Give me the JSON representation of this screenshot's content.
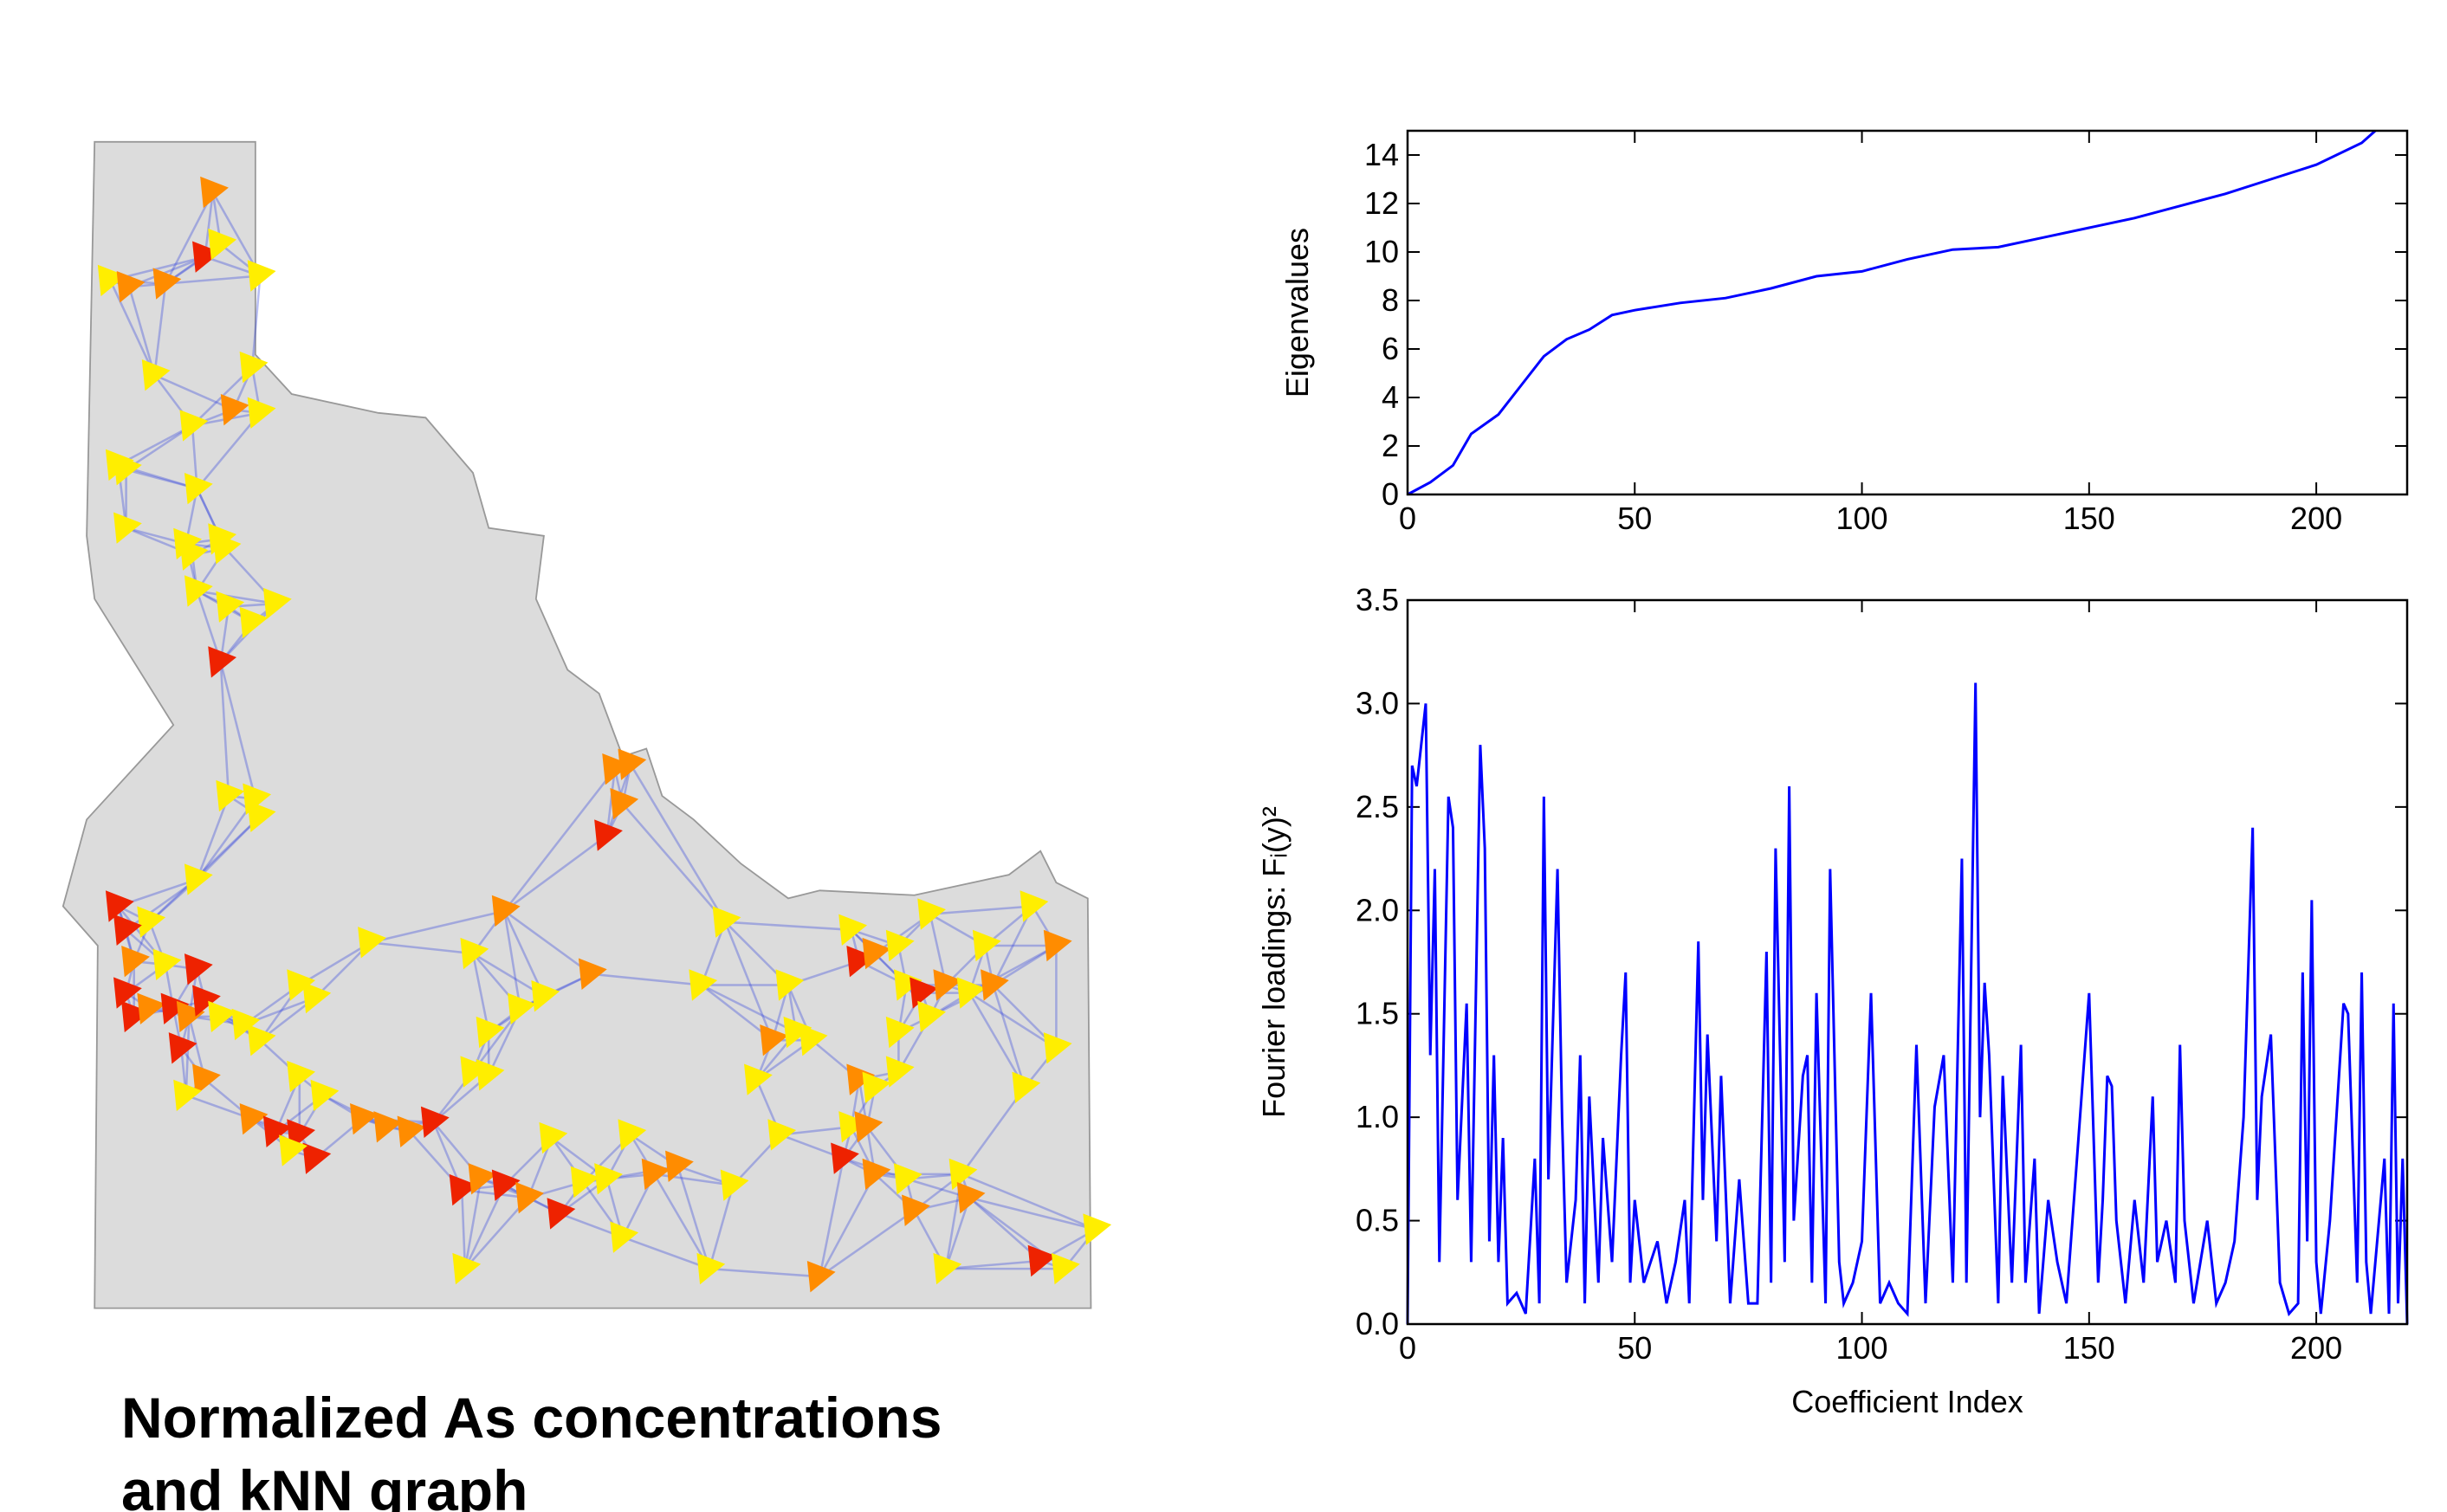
{
  "caption": "Normalized As concentrations and kNN graph",
  "chart_data": [
    {
      "type": "line",
      "ylabel": "Eigenvalues",
      "color": "#0000ff",
      "xlim": [
        0,
        220
      ],
      "xticks": [
        0,
        50,
        100,
        150,
        200
      ],
      "ylim": [
        0,
        15
      ],
      "yticks": [
        0,
        2,
        4,
        6,
        8,
        10,
        12,
        14
      ],
      "x": [
        0,
        5,
        10,
        14,
        20,
        25,
        30,
        35,
        40,
        45,
        50,
        60,
        70,
        80,
        90,
        100,
        110,
        120,
        130,
        140,
        150,
        160,
        170,
        180,
        190,
        200,
        210,
        213
      ],
      "values": [
        0,
        0.5,
        1.2,
        2.5,
        3.3,
        4.5,
        5.7,
        6.4,
        6.8,
        7.4,
        7.6,
        7.9,
        8.1,
        8.5,
        9.0,
        9.2,
        9.7,
        10.1,
        10.2,
        10.6,
        11.0,
        11.4,
        11.9,
        12.4,
        13.0,
        13.6,
        14.5,
        15
      ]
    },
    {
      "type": "line",
      "ylabel": "Fourier loadings: Fᵢ(y)²",
      "xlabel": "Coefficient Index",
      "color": "#0000ff",
      "xlim": [
        0,
        220
      ],
      "xticks": [
        0,
        50,
        100,
        150,
        200
      ],
      "ylim": [
        0,
        3.5
      ],
      "yticks": [
        {
          "value": 0,
          "label": "0.0"
        },
        {
          "value": 0.5,
          "label": "0.5"
        },
        {
          "value": 1,
          "label": "1.0"
        },
        {
          "value": 1.5,
          "label": "1.5"
        },
        {
          "value": 2,
          "label": "2.0"
        },
        {
          "value": 2.5,
          "label": "2.5"
        },
        {
          "value": 3,
          "label": "3.0"
        },
        {
          "value": 3.5,
          "label": "3.5"
        }
      ],
      "x": [
        0,
        1,
        2,
        4,
        5,
        6,
        7,
        9,
        10,
        11,
        13,
        14,
        16,
        17,
        18,
        19,
        20,
        21,
        22,
        24,
        26,
        28,
        29,
        30,
        31,
        33,
        34,
        35,
        37,
        38,
        39,
        40,
        42,
        43,
        45,
        47,
        48,
        49,
        50,
        52,
        55,
        57,
        59,
        61,
        62,
        64,
        65,
        66,
        68,
        69,
        71,
        73,
        75,
        77,
        79,
        80,
        81,
        83,
        84,
        85,
        87,
        88,
        89,
        90,
        92,
        93,
        95,
        96,
        98,
        100,
        102,
        104,
        106,
        108,
        110,
        112,
        114,
        116,
        118,
        120,
        122,
        123,
        125,
        126,
        127,
        128,
        130,
        131,
        133,
        135,
        136,
        138,
        139,
        141,
        143,
        145,
        150,
        152,
        153,
        154,
        155,
        156,
        158,
        160,
        162,
        164,
        165,
        167,
        169,
        170,
        171,
        173,
        176,
        178,
        180,
        182,
        184,
        186,
        187,
        188,
        190,
        192,
        194,
        196,
        197,
        198,
        199,
        200,
        201,
        203,
        205,
        206,
        207,
        209,
        210,
        211,
        212,
        213,
        215,
        216,
        217,
        218,
        219,
        220
      ],
      "values": [
        0,
        2.7,
        2.6,
        3.0,
        1.3,
        2.2,
        0.3,
        2.55,
        2.4,
        0.6,
        1.55,
        0.3,
        2.8,
        2.3,
        0.4,
        1.3,
        0.3,
        0.9,
        0.1,
        0.15,
        0.05,
        0.8,
        0.1,
        2.55,
        0.7,
        2.2,
        1.0,
        0.2,
        0.6,
        1.3,
        0.1,
        1.1,
        0.2,
        0.9,
        0.3,
        1.3,
        1.7,
        0.2,
        0.6,
        0.2,
        0.4,
        0.1,
        0.3,
        0.6,
        0.1,
        1.85,
        0.6,
        1.4,
        0.4,
        1.2,
        0.1,
        0.7,
        0.1,
        0.1,
        1.8,
        0.2,
        2.3,
        0.3,
        2.6,
        0.5,
        1.2,
        1.3,
        0.2,
        1.6,
        0.1,
        2.2,
        0.3,
        0.1,
        0.2,
        0.4,
        1.6,
        0.1,
        0.2,
        0.1,
        0.05,
        1.35,
        0.1,
        1.05,
        1.3,
        0.2,
        2.25,
        0.2,
        3.1,
        1.0,
        1.65,
        1.3,
        0.1,
        1.2,
        0.2,
        1.35,
        0.2,
        0.8,
        0.05,
        0.6,
        0.3,
        0.1,
        1.6,
        0.2,
        0.6,
        1.2,
        1.15,
        0.5,
        0.1,
        0.6,
        0.2,
        1.1,
        0.3,
        0.5,
        0.2,
        1.35,
        0.5,
        0.1,
        0.5,
        0.1,
        0.2,
        0.4,
        1.0,
        2.4,
        0.6,
        1.1,
        1.4,
        0.2,
        0.05,
        0.1,
        1.7,
        0.4,
        2.05,
        0.3,
        0.05,
        0.5,
        1.2,
        1.55,
        1.5,
        0.2,
        1.7,
        0.3,
        0.05,
        0.3,
        0.8,
        0.05,
        1.55,
        0.1,
        0.8,
        0
      ]
    }
  ]
}
